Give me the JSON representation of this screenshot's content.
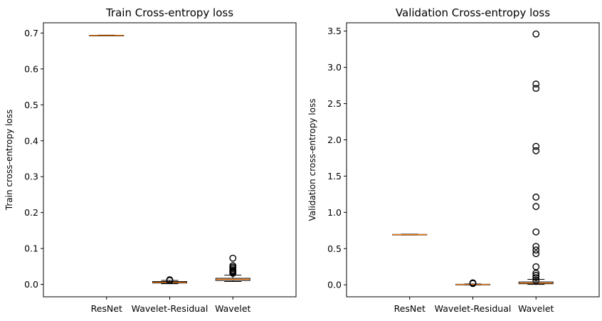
{
  "chart_data": [
    {
      "type": "box",
      "title": "Train Cross-entropy loss",
      "xlabel": "",
      "ylabel": "Train cross-entropy loss",
      "categories": [
        "ResNet",
        "Wavelet-Residual",
        "Wavelet"
      ],
      "ylim": [
        -0.0345,
        0.7285
      ],
      "yticks": [
        0.0,
        0.1,
        0.2,
        0.3,
        0.4,
        0.5,
        0.6,
        0.7
      ],
      "ytick_labels": [
        "0.0",
        "0.1",
        "0.2",
        "0.3",
        "0.4",
        "0.5",
        "0.6",
        "0.7"
      ],
      "grid": false,
      "boxes": [
        {
          "category": "ResNet",
          "q1": 0.6925,
          "median": 0.693,
          "q3": 0.6935,
          "whisker_low": 0.692,
          "whisker_high": 0.694,
          "fliers": []
        },
        {
          "category": "Wavelet-Residual",
          "q1": 0.004,
          "median": 0.006,
          "q3": 0.008,
          "whisker_low": 0.002,
          "whisker_high": 0.011,
          "fliers": [
            0.011,
            0.012,
            0.013
          ]
        },
        {
          "category": "Wavelet",
          "q1": 0.011,
          "median": 0.014,
          "q3": 0.017,
          "whisker_low": 0.008,
          "whisker_high": 0.026,
          "fliers": [
            0.031,
            0.033,
            0.035,
            0.037,
            0.04,
            0.044,
            0.048,
            0.052,
            0.073
          ]
        }
      ]
    },
    {
      "type": "box",
      "title": "Validation Cross-entropy loss",
      "xlabel": "",
      "ylabel": "Validation cross-entropy loss",
      "categories": [
        "ResNet",
        "Wavelet-Residual",
        "Wavelet"
      ],
      "ylim": [
        -0.165,
        3.615
      ],
      "yticks": [
        0.0,
        0.5,
        1.0,
        1.5,
        2.0,
        2.5,
        3.0,
        3.5
      ],
      "ytick_labels": [
        "0.0",
        "0.5",
        "1.0",
        "1.5",
        "2.0",
        "2.5",
        "3.0",
        "3.5"
      ],
      "grid": false,
      "boxes": [
        {
          "category": "ResNet",
          "q1": 0.69,
          "median": 0.693,
          "q3": 0.696,
          "whisker_low": 0.688,
          "whisker_high": 0.699,
          "fliers": []
        },
        {
          "category": "Wavelet-Residual",
          "q1": 0.003,
          "median": 0.005,
          "q3": 0.008,
          "whisker_low": 0.0,
          "whisker_high": 0.012,
          "fliers": [
            0.018,
            0.022,
            0.028
          ]
        },
        {
          "category": "Wavelet",
          "q1": 0.015,
          "median": 0.025,
          "q3": 0.04,
          "whisker_low": 0.005,
          "whisker_high": 0.075,
          "fliers": [
            0.06,
            0.1,
            0.13,
            0.16,
            0.25,
            0.43,
            0.48,
            0.53,
            0.73,
            1.08,
            1.21,
            1.85,
            1.91,
            2.71,
            2.77,
            3.46
          ]
        }
      ]
    }
  ]
}
